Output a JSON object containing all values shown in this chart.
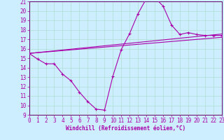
{
  "xlabel": "Windchill (Refroidissement éolien,°C)",
  "bg_color": "#cceeff",
  "grid_color": "#b0ddd0",
  "line_color": "#aa00aa",
  "spine_color": "#660066",
  "x_min": 0,
  "x_max": 23,
  "y_min": 9,
  "y_max": 21,
  "yticks": [
    9,
    10,
    11,
    12,
    13,
    14,
    15,
    16,
    17,
    18,
    19,
    20,
    21
  ],
  "xticks": [
    0,
    1,
    2,
    3,
    4,
    5,
    6,
    7,
    8,
    9,
    10,
    11,
    12,
    13,
    14,
    15,
    16,
    17,
    18,
    19,
    20,
    21,
    22,
    23
  ],
  "main_x": [
    0,
    1,
    2,
    3,
    4,
    5,
    6,
    7,
    8,
    9,
    10,
    11,
    12,
    13,
    14,
    15,
    16,
    17,
    18,
    19,
    20,
    21,
    22,
    23
  ],
  "main_y": [
    15.5,
    14.9,
    14.4,
    14.4,
    13.3,
    12.6,
    11.4,
    10.4,
    9.6,
    9.5,
    13.1,
    15.9,
    17.6,
    19.7,
    21.3,
    21.4,
    20.5,
    18.5,
    17.5,
    17.7,
    17.5,
    17.4,
    17.4,
    17.4
  ],
  "line1_x": [
    0,
    23
  ],
  "line1_y": [
    15.5,
    17.2
  ],
  "line2_x": [
    0,
    23
  ],
  "line2_y": [
    15.5,
    17.55
  ],
  "tick_fontsize": 5.5,
  "xlabel_fontsize": 5.5
}
